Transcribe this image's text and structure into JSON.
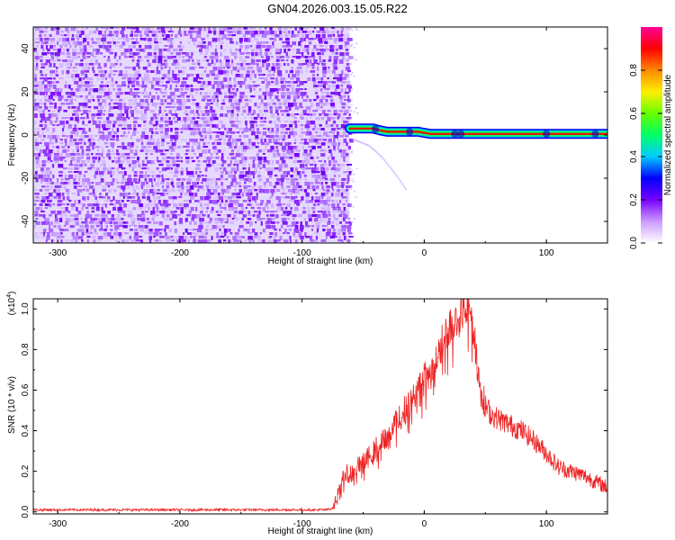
{
  "title": "GN04.2026.003.15.05.R22",
  "chart_data": [
    {
      "type": "heatmap",
      "xlabel": "Height of straight line (km)",
      "ylabel": "Frequency (Hz)",
      "xlim": [
        -320,
        150
      ],
      "ylim": [
        -50,
        50
      ],
      "xticks": [
        -300,
        -200,
        -100,
        0,
        100
      ],
      "xtick_labels": [
        "-300",
        "-200",
        "-100",
        "0",
        "100"
      ],
      "yticks": [
        -40,
        -20,
        0,
        20,
        40
      ],
      "ytick_labels": [
        "-40",
        "-20",
        "0",
        "20",
        "40"
      ],
      "noise_region_x": [
        -320,
        -61
      ],
      "ridge": {
        "x": [
          -61,
          -50,
          -42,
          -35,
          -30,
          -20,
          -5,
          0,
          5,
          20,
          40,
          60,
          80,
          100,
          120,
          150
        ],
        "frequency": [
          3,
          3,
          3,
          2,
          1.5,
          1.5,
          1.5,
          1,
          0.5,
          0.5,
          0.5,
          0.5,
          0.5,
          0.5,
          0.5,
          0.5
        ]
      },
      "faint_arc": {
        "x": [
          -58,
          -45,
          -35,
          -25,
          -15
        ],
        "frequency": [
          -2,
          -5,
          -10,
          -17,
          -25
        ]
      },
      "colorbar": {
        "label": "Normalized spectral amplitude",
        "range": [
          0,
          1
        ],
        "ticks": [
          0.0,
          0.2,
          0.4,
          0.6,
          0.8
        ],
        "tick_labels": [
          "0.0",
          "0.2",
          "0.4",
          "0.6",
          "0.8"
        ],
        "colormap": [
          "#ffffff",
          "#cc99ff",
          "#7700ff",
          "#0000ff",
          "#00ccff",
          "#00ff66",
          "#66ff00",
          "#ffee00",
          "#ff8800",
          "#ff0000",
          "#ff0099"
        ]
      }
    },
    {
      "type": "line",
      "xlabel": "Height of straight line (km)",
      "ylabel": "SNR (10 * v/v)",
      "scale_label": "(x10",
      "scale_exponent": "4",
      "scale_close": ")",
      "xlim": [
        -320,
        150
      ],
      "ylim": [
        -0.01,
        1.05
      ],
      "xticks": [
        -300,
        -200,
        -100,
        0,
        100
      ],
      "xtick_labels": [
        "-300",
        "-200",
        "-100",
        "0",
        "100"
      ],
      "yticks": [
        0.0,
        0.2,
        0.4,
        0.6,
        0.8,
        1.0
      ],
      "ytick_labels": [
        "0.0",
        "0.2",
        "0.4",
        "0.6",
        "0.8",
        "1.0"
      ],
      "series": [
        {
          "name": "SNR",
          "color": "#ee2222",
          "x": [
            -320,
            -250,
            -200,
            -150,
            -100,
            -80,
            -74,
            -70,
            -65,
            -60,
            -50,
            -40,
            -30,
            -20,
            -10,
            0,
            10,
            20,
            25,
            30,
            35,
            38,
            42,
            46,
            50,
            55,
            60,
            70,
            80,
            90,
            100,
            110,
            120,
            130,
            140,
            150
          ],
          "values": [
            0.01,
            0.01,
            0.01,
            0.01,
            0.01,
            0.01,
            0.02,
            0.12,
            0.18,
            0.2,
            0.24,
            0.31,
            0.38,
            0.47,
            0.56,
            0.65,
            0.77,
            0.9,
            0.95,
            0.99,
            1.0,
            0.99,
            0.82,
            0.62,
            0.52,
            0.48,
            0.46,
            0.43,
            0.4,
            0.35,
            0.29,
            0.22,
            0.2,
            0.18,
            0.15,
            0.12
          ]
        }
      ]
    }
  ]
}
